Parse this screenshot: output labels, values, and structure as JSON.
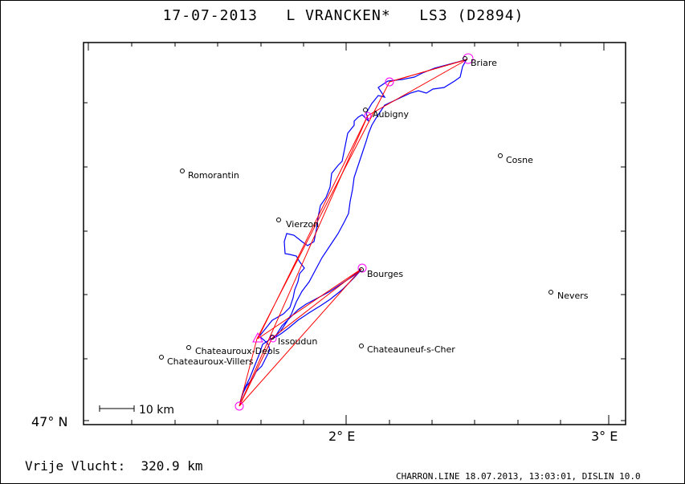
{
  "header": {
    "title": "17-07-2013   L VRANCKEN*   LS3 (D2894)"
  },
  "map": {
    "lat_label": "47° N",
    "lon_labels": [
      "2° E",
      "3° E"
    ],
    "scale_label": "10 km",
    "towns": [
      "Briare",
      "Aubigny",
      "Cosne",
      "Romorantin",
      "Vierzon",
      "Bourges",
      "Nevers",
      "Chateauroux-Deols",
      "Issoudun",
      "Chateauneuf-s-Cher",
      "Chateauroux-Villers"
    ],
    "colors": {
      "track": "#0000ff",
      "task": "#ff0000",
      "turnpoint": "#ff00ff"
    }
  },
  "summary": {
    "distance": "Vrije Vlucht:  320.9 km"
  },
  "footer": {
    "info": "CHARRON.LINE 18.07.2013, 13:03:01, DISLIN 10.0"
  }
}
